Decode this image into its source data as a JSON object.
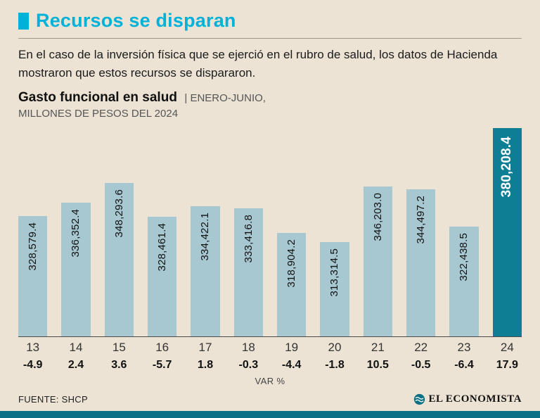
{
  "colors": {
    "accent": "#00b2d8",
    "bar": "#a7c7d1",
    "barhl": "#0e7e95",
    "bg": "#ece3d4",
    "strip": "#0c7086"
  },
  "header": {
    "title": "Recursos se disparan",
    "intro": "En el caso de la inversión física que se ejerció en el rubro de salud, los datos de Hacienda mostraron que estos recursos se dispararon.",
    "chart_title": "Gasto funcional en salud",
    "chart_period": "| ENERO-JUNIO,",
    "chart_units": "MILLONES DE PESOS DEL 2024"
  },
  "chart_data": {
    "type": "bar",
    "categories": [
      "13",
      "14",
      "15",
      "16",
      "17",
      "18",
      "19",
      "20",
      "21",
      "22",
      "23",
      "24"
    ],
    "values": [
      328579.4,
      336352.4,
      348293.6,
      328461.4,
      334422.1,
      333416.8,
      318904.2,
      313314.5,
      346203.0,
      344497.2,
      322438.5,
      380208.4
    ],
    "value_labels": [
      "328,579.4",
      "336,352.4",
      "348,293.6",
      "328,461.4",
      "334,422.1",
      "333,416.8",
      "318,904.2",
      "313,314.5",
      "346,203.0",
      "344,497.2",
      "322,438.5",
      "380,208.4"
    ],
    "var_pct": [
      "-4.9",
      "2.4",
      "3.6",
      "-5.7",
      "1.8",
      "-0.3",
      "-4.4",
      "-1.8",
      "10.5",
      "-0.5",
      "-6.4",
      "17.9"
    ],
    "highlight_index": 11,
    "title": "Gasto funcional en salud | ENERO-JUNIO, MILLONES DE PESOS DEL 2024",
    "xlabel": "VAR %",
    "ylabel": "",
    "ylim": [
      258000,
      382000
    ],
    "grid": false,
    "legend": "none"
  },
  "footer": {
    "source": "FUENTE: SHCP",
    "brand": "EL ECONOMISTA"
  }
}
